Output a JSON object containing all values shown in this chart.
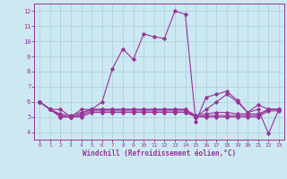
{
  "title": "",
  "xlabel": "Windchill (Refroidissement éolien,°C)",
  "x_values": [
    0,
    1,
    2,
    3,
    4,
    5,
    6,
    7,
    8,
    9,
    10,
    11,
    12,
    13,
    14,
    15,
    16,
    17,
    18,
    19,
    20,
    21,
    22,
    23
  ],
  "main_line": [
    6.0,
    5.5,
    5.5,
    5.0,
    5.5,
    5.5,
    6.0,
    8.2,
    9.5,
    8.8,
    10.5,
    10.3,
    10.2,
    12.0,
    11.8,
    4.7,
    6.3,
    6.5,
    6.7,
    6.1,
    5.3,
    5.8,
    5.5,
    5.5
  ],
  "line2": [
    6.0,
    5.5,
    5.2,
    5.1,
    5.3,
    5.5,
    5.5,
    5.5,
    5.5,
    5.5,
    5.5,
    5.5,
    5.5,
    5.5,
    5.5,
    5.1,
    5.2,
    5.3,
    5.3,
    5.2,
    5.2,
    5.2,
    5.5,
    5.5
  ],
  "line3": [
    6.0,
    5.5,
    5.1,
    5.0,
    5.2,
    5.5,
    5.5,
    5.5,
    5.5,
    5.5,
    5.5,
    5.5,
    5.5,
    5.5,
    5.5,
    5.0,
    5.1,
    5.1,
    5.1,
    5.1,
    5.1,
    5.1,
    5.5,
    5.5
  ],
  "line4": [
    6.0,
    5.5,
    5.0,
    5.0,
    5.1,
    5.4,
    5.4,
    5.4,
    5.4,
    5.4,
    5.4,
    5.4,
    5.4,
    5.4,
    5.4,
    5.0,
    5.0,
    5.0,
    5.0,
    5.0,
    5.0,
    5.0,
    5.4,
    5.4
  ],
  "line5": [
    6.0,
    5.5,
    5.0,
    5.0,
    5.0,
    5.3,
    5.3,
    5.3,
    5.3,
    5.3,
    5.3,
    5.3,
    5.3,
    5.3,
    5.3,
    5.0,
    5.5,
    6.0,
    6.5,
    6.0,
    5.3,
    5.5,
    3.9,
    5.5
  ],
  "line_color": "#993399",
  "bg_color": "#cce8f0",
  "grid_color": "#aaccdd",
  "ylim": [
    3.5,
    12.5
  ],
  "xlim": [
    -0.5,
    23.5
  ],
  "yticks": [
    4,
    5,
    6,
    7,
    8,
    9,
    10,
    11,
    12
  ],
  "xticks": [
    0,
    1,
    2,
    3,
    4,
    5,
    6,
    7,
    8,
    9,
    10,
    11,
    12,
    13,
    14,
    15,
    16,
    17,
    18,
    19,
    20,
    21,
    22,
    23
  ]
}
